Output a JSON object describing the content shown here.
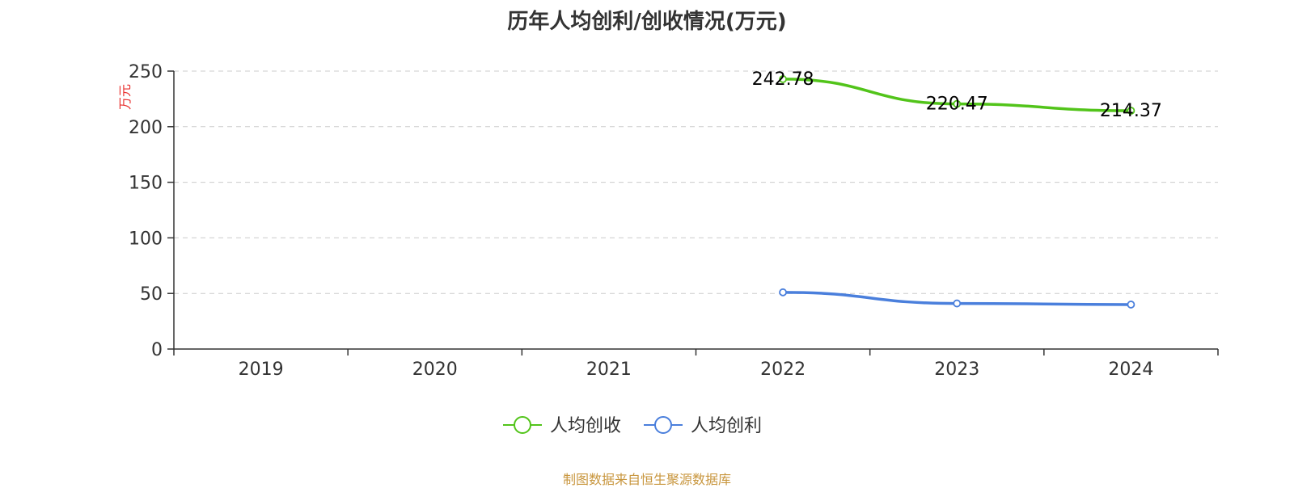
{
  "chart_data": {
    "type": "line",
    "title": "历年人均创利/创收情况(万元)",
    "ylabel": "万元",
    "xlabel": "",
    "categories": [
      "2019",
      "2020",
      "2021",
      "2022",
      "2023",
      "2024"
    ],
    "ylim": [
      0,
      250
    ],
    "yticks": [
      0,
      50,
      100,
      150,
      200,
      250
    ],
    "grid": true,
    "legend_position": "bottom",
    "series": [
      {
        "name": "人均创收",
        "color": "#52c41a",
        "values": [
          null,
          null,
          null,
          242.78,
          220.47,
          214.37
        ],
        "show_labels": true
      },
      {
        "name": "人均创利",
        "color": "#4a7fdc",
        "values": [
          null,
          null,
          null,
          51,
          41,
          40
        ],
        "show_labels": false
      }
    ]
  },
  "source_note": "制图数据来自恒生聚源数据库"
}
